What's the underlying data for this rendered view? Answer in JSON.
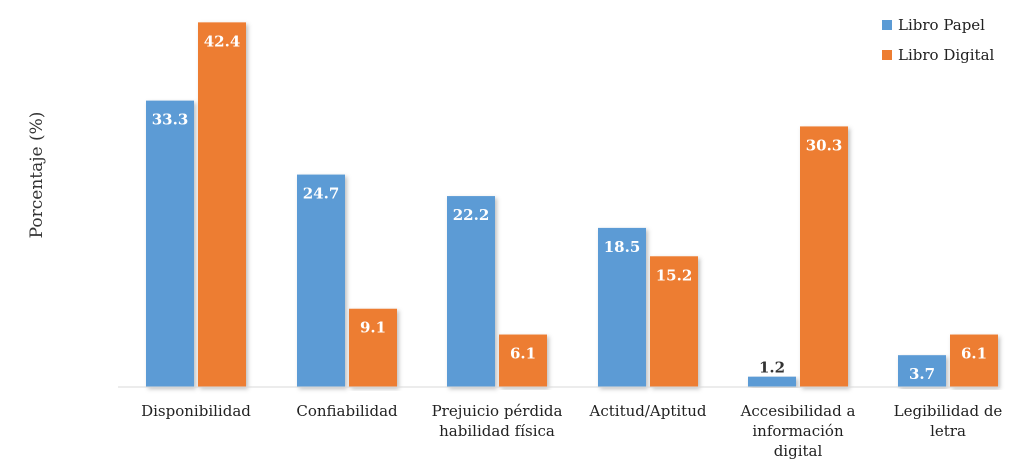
{
  "chart_data": {
    "type": "bar",
    "title": "",
    "xlabel": "",
    "ylabel": "Porcentaje (%)",
    "ylim": [
      0,
      45
    ],
    "grid": false,
    "legend_position": "top-right",
    "categories": [
      [
        "Disponibilidad"
      ],
      [
        "Confiabilidad"
      ],
      [
        "Prejuicio pérdida",
        "habilidad física"
      ],
      [
        "Actitud/Aptitud"
      ],
      [
        "Accesibilidad a",
        "información",
        "digital"
      ],
      [
        "Legibilidad de",
        "letra"
      ]
    ],
    "series": [
      {
        "name": "Libro Papel",
        "color": "#5B9BD5",
        "values": [
          33.3,
          24.7,
          22.2,
          18.5,
          1.2,
          3.7
        ]
      },
      {
        "name": "Libro Digital",
        "color": "#ED7D31",
        "values": [
          42.4,
          9.1,
          6.1,
          15.2,
          30.3,
          6.1
        ]
      }
    ],
    "value_labels": [
      [
        "33.3",
        "24.7",
        "22.2",
        "18.5",
        "1.2",
        "3.7"
      ],
      [
        "42.4",
        "9.1",
        "6.1",
        "15.2",
        "30.3",
        "6.1"
      ]
    ]
  }
}
